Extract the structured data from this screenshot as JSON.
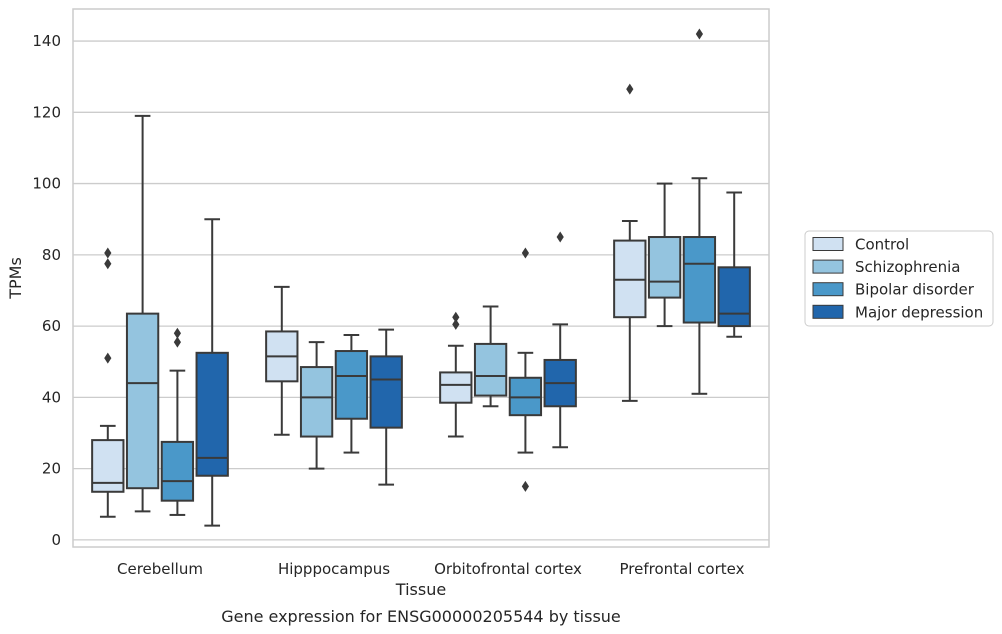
{
  "chart_data": {
    "type": "box",
    "title": "Gene expression for ENSG00000205544 by tissue",
    "xlabel": "Tissue",
    "ylabel": "TPMs",
    "ylim": [
      -2,
      149
    ],
    "yticks": [
      0,
      20,
      40,
      60,
      80,
      100,
      120,
      140
    ],
    "grid": true,
    "legend_position": "right",
    "categories": [
      "Cerebellum",
      "Hipppocampus",
      "Orbitofrontal cortex",
      "Prefrontal cortex"
    ],
    "series": [
      {
        "name": "Control",
        "color": "#d0e1f2",
        "boxes": [
          {
            "whisker_low": 6.5,
            "q1": 13.5,
            "median": 16,
            "q3": 28,
            "whisker_high": 32,
            "outliers": [
              51,
              77.5,
              80.5
            ]
          },
          {
            "whisker_low": 29.5,
            "q1": 44.5,
            "median": 51.5,
            "q3": 58.5,
            "whisker_high": 71,
            "outliers": []
          },
          {
            "whisker_low": 29,
            "q1": 38.5,
            "median": 43.5,
            "q3": 47,
            "whisker_high": 54.5,
            "outliers": [
              60.5,
              62.5
            ]
          },
          {
            "whisker_low": 39,
            "q1": 62.5,
            "median": 73,
            "q3": 84,
            "whisker_high": 89.5,
            "outliers": [
              126.5
            ]
          }
        ]
      },
      {
        "name": "Schizophrenia",
        "color": "#94c4df",
        "boxes": [
          {
            "whisker_low": 8,
            "q1": 14.5,
            "median": 44,
            "q3": 63.5,
            "whisker_high": 119,
            "outliers": []
          },
          {
            "whisker_low": 20,
            "q1": 29,
            "median": 40,
            "q3": 48.5,
            "whisker_high": 55.5,
            "outliers": []
          },
          {
            "whisker_low": 37.5,
            "q1": 40.5,
            "median": 46,
            "q3": 55,
            "whisker_high": 65.5,
            "outliers": []
          },
          {
            "whisker_low": 60,
            "q1": 68,
            "median": 72.5,
            "q3": 85,
            "whisker_high": 100,
            "outliers": []
          }
        ]
      },
      {
        "name": "Bipolar disorder",
        "color": "#4a98c9",
        "boxes": [
          {
            "whisker_low": 7,
            "q1": 11,
            "median": 16.5,
            "q3": 27.5,
            "whisker_high": 47.5,
            "outliers": [
              55.5,
              58
            ]
          },
          {
            "whisker_low": 24.5,
            "q1": 34,
            "median": 46,
            "q3": 53,
            "whisker_high": 57.5,
            "outliers": []
          },
          {
            "whisker_low": 24.5,
            "q1": 35,
            "median": 40,
            "q3": 45.5,
            "whisker_high": 52.5,
            "outliers": [
              15,
              80.5
            ]
          },
          {
            "whisker_low": 41,
            "q1": 61,
            "median": 77.5,
            "q3": 85,
            "whisker_high": 101.5,
            "outliers": [
              142
            ]
          }
        ]
      },
      {
        "name": "Major depression",
        "color": "#2166ac",
        "boxes": [
          {
            "whisker_low": 4,
            "q1": 18,
            "median": 23,
            "q3": 52.5,
            "whisker_high": 90,
            "outliers": []
          },
          {
            "whisker_low": 15.5,
            "q1": 31.5,
            "median": 45,
            "q3": 51.5,
            "whisker_high": 59,
            "outliers": []
          },
          {
            "whisker_low": 26,
            "q1": 37.5,
            "median": 44,
            "q3": 50.5,
            "whisker_high": 60.5,
            "outliers": [
              85
            ]
          },
          {
            "whisker_low": 57,
            "q1": 60,
            "median": 63.5,
            "q3": 76.5,
            "whisker_high": 97.5,
            "outliers": []
          }
        ]
      }
    ]
  }
}
